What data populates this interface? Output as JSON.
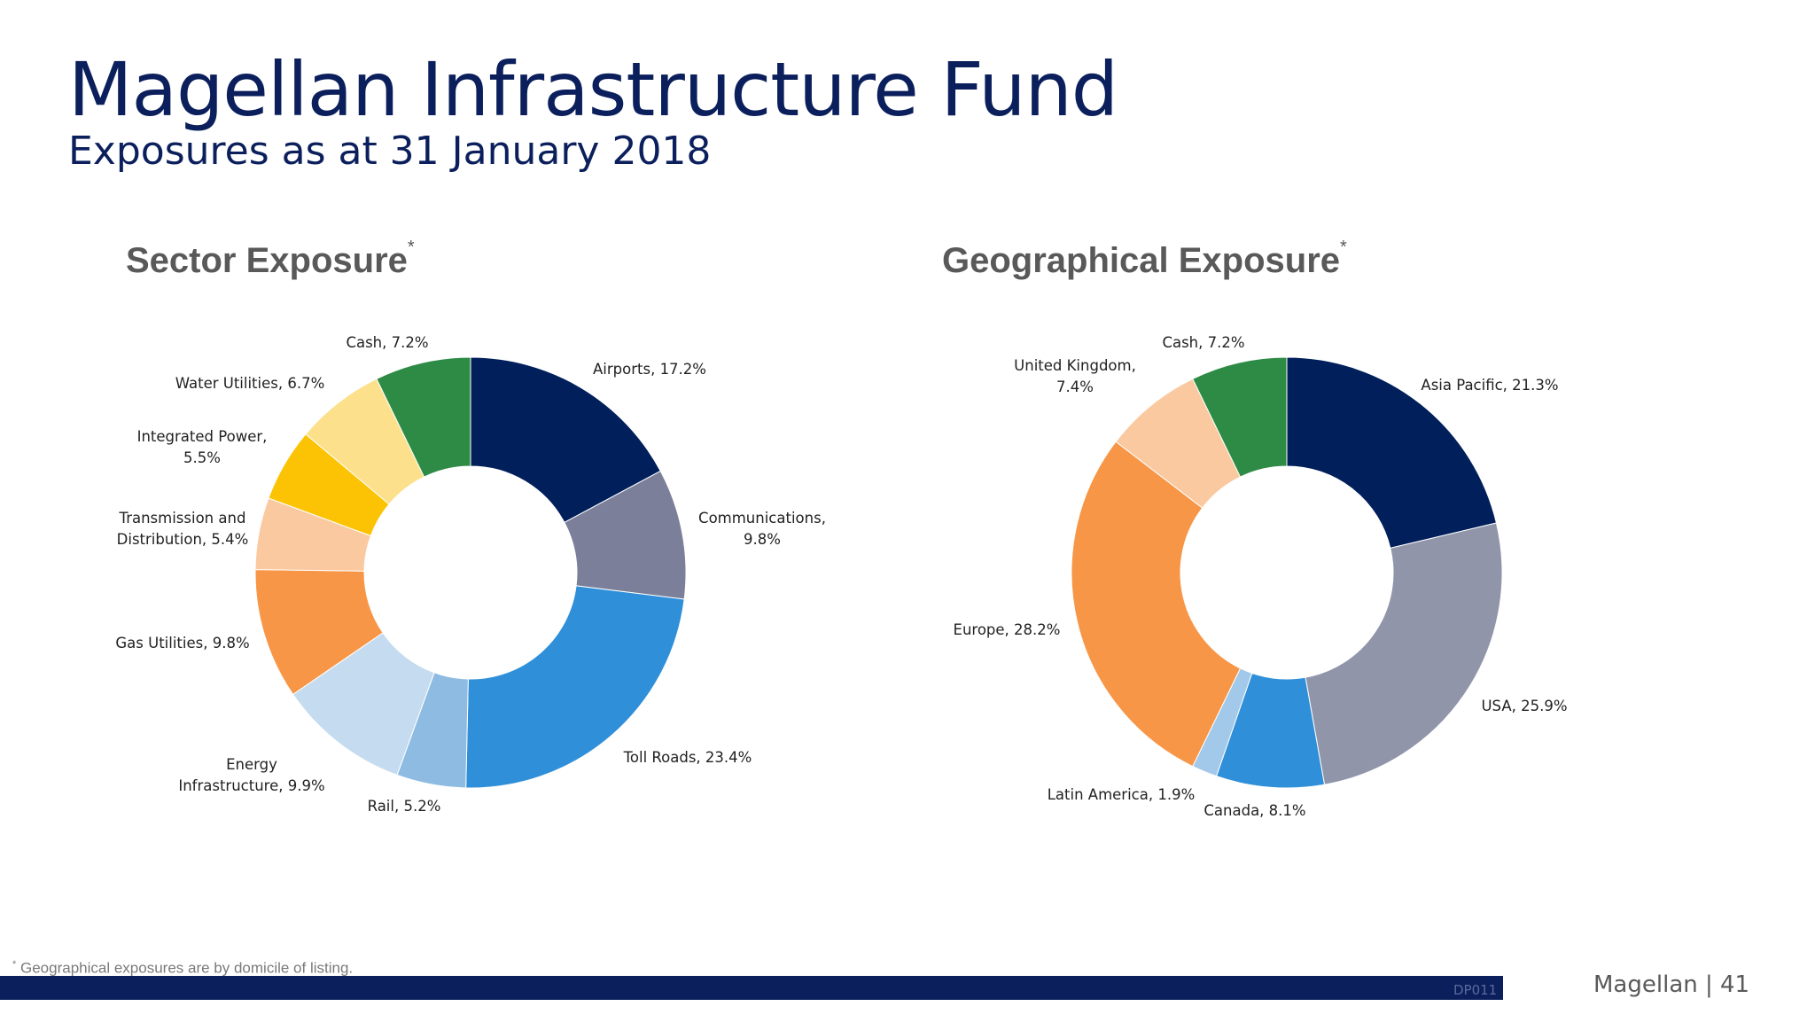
{
  "header": {
    "title": "Magellan Infrastructure Fund",
    "subtitle": "Exposures as at 31 January 2018"
  },
  "chart_titles": {
    "sector": "Sector Exposure",
    "geo": "Geographical Exposure",
    "marker": "*"
  },
  "chart_data": [
    {
      "type": "pie",
      "donut": true,
      "title": "Sector Exposure*",
      "legend": "none",
      "slices": [
        {
          "label": "Airports",
          "value": 17.2,
          "color": "#001f5b",
          "label_text": [
            "Airports, 17.2%"
          ]
        },
        {
          "label": "Communications",
          "value": 9.8,
          "color": "#7b7f99",
          "label_text": [
            "Communications,",
            "9.8%"
          ]
        },
        {
          "label": "Toll Roads",
          "value": 23.4,
          "color": "#2f8fd9",
          "label_text": [
            "Toll Roads, 23.4%"
          ]
        },
        {
          "label": "Rail",
          "value": 5.2,
          "color": "#8ebbe1",
          "label_text": [
            "Rail, 5.2%"
          ]
        },
        {
          "label": "Energy Infrastructure",
          "value": 9.9,
          "color": "#c5dcf0",
          "label_text": [
            "Energy",
            "Infrastructure, 9.9%"
          ]
        },
        {
          "label": "Gas Utilities",
          "value": 9.8,
          "color": "#f79646",
          "label_text": [
            "Gas Utilities, 9.8%"
          ]
        },
        {
          "label": "Transmission and Distribution",
          "value": 5.4,
          "color": "#fac9a0",
          "label_text": [
            "Transmission and",
            "Distribution, 5.4%"
          ]
        },
        {
          "label": "Integrated Power",
          "value": 5.5,
          "color": "#fbc303",
          "label_text": [
            "Integrated Power,",
            "5.5%"
          ]
        },
        {
          "label": "Water Utilities",
          "value": 6.7,
          "color": "#fde08c",
          "label_text": [
            "Water Utilities, 6.7%"
          ]
        },
        {
          "label": "Cash",
          "value": 7.2,
          "color": "#2e8b45",
          "label_text": [
            "Cash, 7.2%"
          ]
        }
      ]
    },
    {
      "type": "pie",
      "donut": true,
      "title": "Geographical Exposure*",
      "legend": "none",
      "slices": [
        {
          "label": "Asia Pacific",
          "value": 21.3,
          "color": "#001f5b",
          "label_text": [
            "Asia Pacific, 21.3%"
          ]
        },
        {
          "label": "USA",
          "value": 25.9,
          "color": "#9195aa",
          "label_text": [
            "USA, 25.9%"
          ]
        },
        {
          "label": "Canada",
          "value": 8.1,
          "color": "#2f8fd9",
          "label_text": [
            "Canada, 8.1%"
          ]
        },
        {
          "label": "Latin America",
          "value": 1.9,
          "color": "#a3c9ea",
          "label_text": [
            "Latin America, 1.9%"
          ]
        },
        {
          "label": "Europe",
          "value": 28.2,
          "color": "#f79646",
          "label_text": [
            "Europe, 28.2%"
          ]
        },
        {
          "label": "United Kingdom",
          "value": 7.4,
          "color": "#fac9a0",
          "label_text": [
            "United Kingdom,",
            "7.4%"
          ]
        },
        {
          "label": "Cash",
          "value": 7.2,
          "color": "#2e8b45",
          "label_text": [
            "Cash, 7.2%"
          ]
        }
      ]
    }
  ],
  "footer": {
    "footnote_marker": "*",
    "footnote": " Geographical exposures are by domicile of listing.",
    "code": "DP011",
    "page": "Magellan | 41"
  }
}
